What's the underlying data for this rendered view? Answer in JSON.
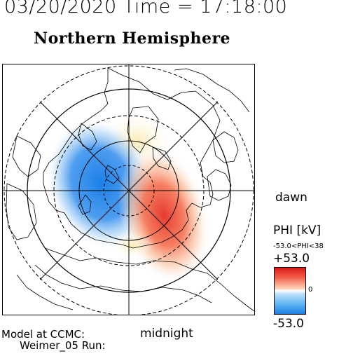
{
  "header": {
    "date_time": "03/20/2020 Time = 17:18:00",
    "hemisphere": "Northern Hemisphere"
  },
  "plot": {
    "dawn_label": "dawn",
    "midnight_label": "midnight"
  },
  "colorbar": {
    "title": "PHI [kV]",
    "range_label": "-53.0<PHI<38",
    "max_label": "+53.0",
    "zero_label": "0",
    "min_label": "-53.0",
    "colors": {
      "positive": "#d9181a",
      "zero": "#ffffff",
      "negative": "#1a80e6"
    }
  },
  "credits": {
    "line1": "Model at CCMC:",
    "line2": "Weimer_05 Run:"
  }
}
